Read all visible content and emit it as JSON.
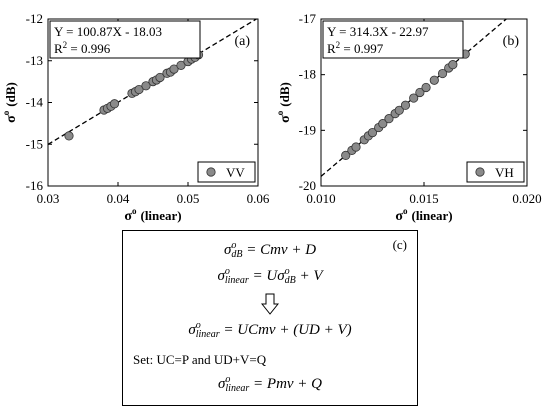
{
  "chart_data": [
    {
      "type": "scatter",
      "panel_label": "(a)",
      "equation": "Y = 100.87X - 18.03",
      "r2_prefix": "R",
      "r2_exp": "2",
      "r2_value": " = 0.996",
      "xlabel_sym": "σ",
      "xlabel_sup": "o",
      "xlabel_unit": "(linear)",
      "ylabel_sym": "σ",
      "ylabel_sup": "o",
      "ylabel_unit": "(dB)",
      "xlim": [
        0.03,
        0.06
      ],
      "ylim": [
        -16,
        -12
      ],
      "xticks": [
        0.03,
        0.04,
        0.05,
        0.06
      ],
      "yticks": [
        -16,
        -15,
        -14,
        -13,
        -12
      ],
      "xtick_labels": [
        "0.03",
        "0.04",
        "0.05",
        "0.06"
      ],
      "ytick_labels": [
        "-16",
        "-15",
        "-14",
        "-13",
        "-12"
      ],
      "fit": {
        "slope": 100.87,
        "intercept": -18.03
      },
      "legend": {
        "label": "VV",
        "position": "bottom-right"
      },
      "series": [
        {
          "color": "#8a8a8a",
          "x": [
            0.033,
            0.038,
            0.0385,
            0.039,
            0.0395,
            0.042,
            0.0425,
            0.043,
            0.044,
            0.045,
            0.0455,
            0.046,
            0.047,
            0.0475,
            0.048,
            0.049,
            0.05,
            0.0505,
            0.051,
            0.0515
          ],
          "y": [
            -14.8,
            -14.18,
            -14.14,
            -14.09,
            -14.03,
            -13.78,
            -13.74,
            -13.69,
            -13.6,
            -13.5,
            -13.46,
            -13.4,
            -13.3,
            -13.27,
            -13.2,
            -13.11,
            -13.02,
            -12.96,
            -12.92,
            -12.86
          ]
        }
      ]
    },
    {
      "type": "scatter",
      "panel_label": "(b)",
      "equation": "Y = 314.3X - 22.97",
      "r2_prefix": "R",
      "r2_exp": "2",
      "r2_value": " = 0.997",
      "xlabel_sym": "σ",
      "xlabel_sup": "o",
      "xlabel_unit": "(linear)",
      "ylabel_sym": "σ",
      "ylabel_sup": "o",
      "ylabel_unit": "(dB)",
      "xlim": [
        0.01,
        0.02
      ],
      "ylim": [
        -20,
        -17
      ],
      "xticks": [
        0.01,
        0.015,
        0.02
      ],
      "yticks": [
        -20,
        -19,
        -18,
        -17
      ],
      "xtick_labels": [
        "0.010",
        "0.015",
        "0.020"
      ],
      "ytick_labels": [
        "-20",
        "-19",
        "-18",
        "-17"
      ],
      "fit": {
        "slope": 314.3,
        "intercept": -22.97
      },
      "legend": {
        "label": "VH",
        "position": "bottom-right"
      },
      "series": [
        {
          "color": "#8a8a8a",
          "x": [
            0.0112,
            0.0115,
            0.0117,
            0.0121,
            0.0123,
            0.0125,
            0.0128,
            0.013,
            0.0133,
            0.0136,
            0.0138,
            0.0141,
            0.0145,
            0.0148,
            0.0151,
            0.0155,
            0.0159,
            0.0162,
            0.0164,
            0.017
          ],
          "y": [
            -19.45,
            -19.36,
            -19.3,
            -19.17,
            -19.1,
            -19.04,
            -18.95,
            -18.88,
            -18.79,
            -18.7,
            -18.64,
            -18.55,
            -18.42,
            -18.32,
            -18.23,
            -18.1,
            -17.98,
            -17.88,
            -17.82,
            -17.63
          ]
        }
      ]
    }
  ],
  "equations_panel": {
    "label": "(c)",
    "sigma": "σ",
    "o": "o",
    "dB": "dB",
    "linear": "linear",
    "eq1_rhs": " = Cmv + D",
    "eq2_U": " = U",
    "eq2_V": " + V",
    "eq3_rhs": " = UCmv + (UD + V)",
    "set_line": "Set: UC=P and UD+V=Q",
    "eq4_rhs": " = Pmv + Q"
  }
}
